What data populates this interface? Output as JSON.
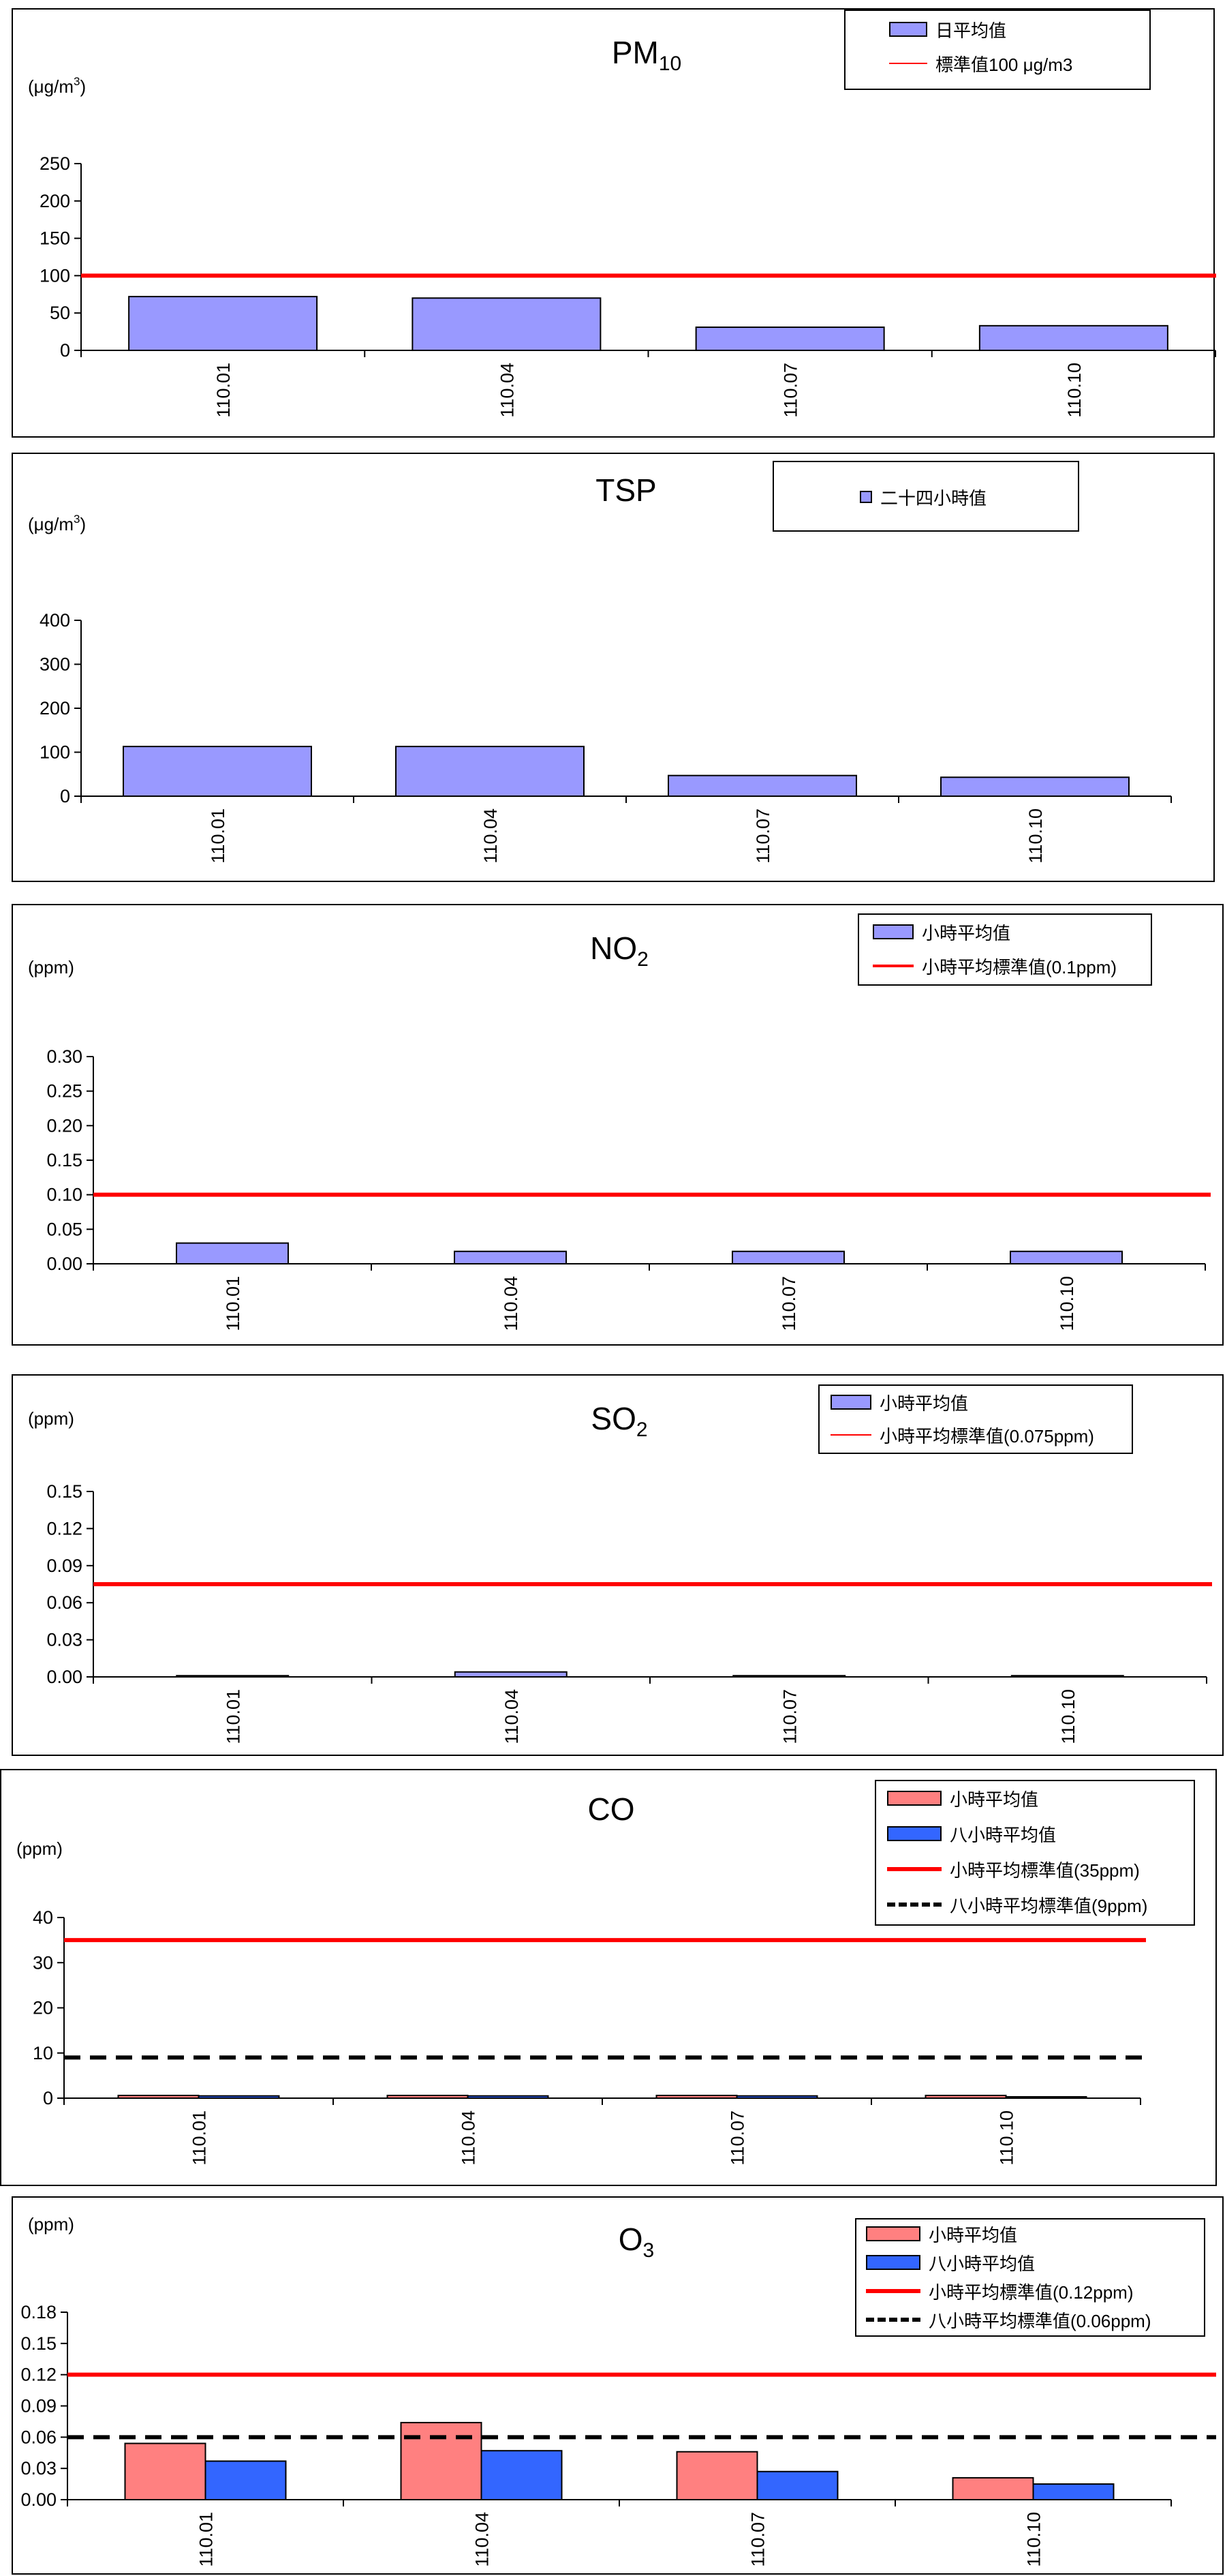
{
  "chart_data": [
    {
      "type": "bar",
      "title": "PM10",
      "title_main": "PM",
      "title_sub": "10",
      "unit_prefix": "(μg/m",
      "unit_sup": "3",
      "unit_suffix": ")",
      "categories": [
        "110.01",
        "110.04",
        "110.07",
        "110.10"
      ],
      "series": [
        {
          "name": "日平均值",
          "values": [
            72,
            70,
            31,
            33
          ],
          "color": "#9999ff"
        }
      ],
      "reference_lines": [
        {
          "name": "標準值100 μg/m3",
          "value": 100,
          "color": "#ff0000",
          "dash": "solid"
        }
      ],
      "ylim": [
        0,
        250
      ],
      "yticks": [
        "0",
        "50",
        "100",
        "150",
        "200",
        "250"
      ],
      "grid": false,
      "legend_position": "top-right"
    },
    {
      "type": "bar",
      "title": "TSP",
      "title_main": "TSP",
      "title_sub": "",
      "unit_prefix": "(μg/m",
      "unit_sup": "3",
      "unit_suffix": ")",
      "categories": [
        "110.01",
        "110.04",
        "110.07",
        "110.10"
      ],
      "series": [
        {
          "name": "二十四小時值",
          "values": [
            113,
            113,
            47,
            43
          ],
          "color": "#9999ff"
        }
      ],
      "reference_lines": [],
      "ylim": [
        0,
        400
      ],
      "yticks": [
        "0",
        "100",
        "200",
        "300",
        "400"
      ],
      "grid": false,
      "legend_position": "top-right"
    },
    {
      "type": "bar",
      "title": "NO2",
      "title_main": "NO",
      "title_sub": "2",
      "unit_prefix": "(ppm)",
      "unit_sup": "",
      "unit_suffix": "",
      "categories": [
        "110.01",
        "110.04",
        "110.07",
        "110.10"
      ],
      "series": [
        {
          "name": "小時平均值",
          "values": [
            0.03,
            0.018,
            0.018,
            0.018
          ],
          "color": "#9999ff"
        }
      ],
      "reference_lines": [
        {
          "name": "小時平均標準值(0.1ppm)",
          "value": 0.1,
          "color": "#ff0000",
          "dash": "solid"
        }
      ],
      "ylim": [
        0,
        0.3
      ],
      "yticks": [
        "0.00",
        "0.05",
        "0.10",
        "0.15",
        "0.20",
        "0.25",
        "0.30"
      ],
      "grid": false,
      "legend_position": "top-right"
    },
    {
      "type": "bar",
      "title": "SO2",
      "title_main": "SO",
      "title_sub": "2",
      "unit_prefix": "(ppm)",
      "unit_sup": "",
      "unit_suffix": "",
      "categories": [
        "110.01",
        "110.04",
        "110.07",
        "110.10"
      ],
      "series": [
        {
          "name": "小時平均值",
          "values": [
            0.001,
            0.004,
            0.001,
            0.001
          ],
          "color": "#9999ff"
        }
      ],
      "reference_lines": [
        {
          "name": "小時平均標準值(0.075ppm)",
          "value": 0.075,
          "color": "#ff0000",
          "dash": "solid"
        }
      ],
      "ylim": [
        0,
        0.15
      ],
      "yticks": [
        "0.00",
        "0.03",
        "0.06",
        "0.09",
        "0.12",
        "0.15"
      ],
      "grid": false,
      "legend_position": "top-right"
    },
    {
      "type": "bar",
      "title": "CO",
      "title_main": "CO",
      "title_sub": "",
      "unit_prefix": "(ppm)",
      "unit_sup": "",
      "unit_suffix": "",
      "categories": [
        "110.01",
        "110.04",
        "110.07",
        "110.10"
      ],
      "series": [
        {
          "name": "小時平均值",
          "values": [
            0.6,
            0.6,
            0.6,
            0.6
          ],
          "color": "#ff8080"
        },
        {
          "name": "八小時平均值",
          "values": [
            0.5,
            0.5,
            0.5,
            0.3
          ],
          "color": "#3366ff"
        }
      ],
      "reference_lines": [
        {
          "name": "小時平均標準值(35ppm)",
          "value": 35,
          "color": "#ff0000",
          "dash": "solid"
        },
        {
          "name": "八小時平均標準值(9ppm)",
          "value": 9,
          "color": "#000000",
          "dash": "dashed"
        }
      ],
      "ylim": [
        0,
        40
      ],
      "yticks": [
        "0",
        "10",
        "20",
        "30",
        "40"
      ],
      "grid": false,
      "legend_position": "top-right"
    },
    {
      "type": "bar",
      "title": "O3",
      "title_main": "O",
      "title_sub": "3",
      "unit_prefix": "(ppm)",
      "unit_sup": "",
      "unit_suffix": "",
      "categories": [
        "110.01",
        "110.04",
        "110.07",
        "110.10"
      ],
      "series": [
        {
          "name": "小時平均值",
          "values": [
            0.054,
            0.074,
            0.046,
            0.021
          ],
          "color": "#ff8080"
        },
        {
          "name": "八小時平均值",
          "values": [
            0.037,
            0.047,
            0.027,
            0.015
          ],
          "color": "#3366ff"
        }
      ],
      "reference_lines": [
        {
          "name": "小時平均標準值(0.12ppm)",
          "value": 0.12,
          "color": "#ff0000",
          "dash": "solid"
        },
        {
          "name": "八小時平均標準值(0.06ppm)",
          "value": 0.06,
          "color": "#000000",
          "dash": "dashed"
        }
      ],
      "ylim": [
        0,
        0.18
      ],
      "yticks": [
        "0.00",
        "0.03",
        "0.06",
        "0.09",
        "0.12",
        "0.15",
        "0.18"
      ],
      "grid": false,
      "legend_position": "top-right"
    }
  ]
}
